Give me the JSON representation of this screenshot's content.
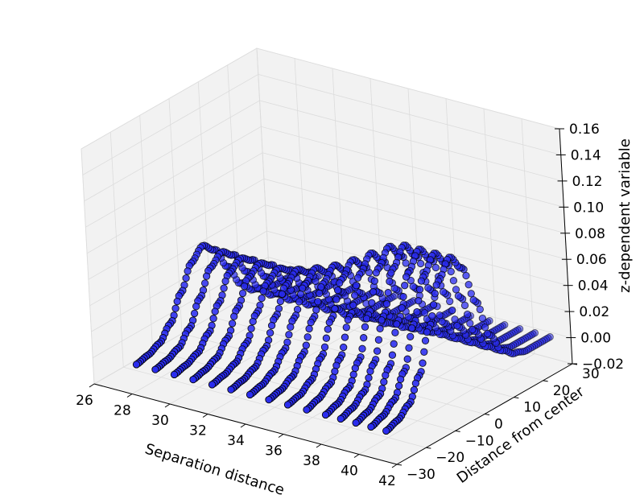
{
  "chart_data": {
    "type": "scatter",
    "projection": "3d",
    "title": "",
    "xlabel": "Separation distance",
    "ylabel": "Distance from center",
    "zlabel": "z-dependent variable",
    "xlim": [
      26,
      42
    ],
    "ylim": [
      -30,
      30
    ],
    "zlim": [
      -0.02,
      0.16
    ],
    "x_ticks": [
      "26",
      "28",
      "30",
      "32",
      "34",
      "36",
      "38",
      "40",
      "42"
    ],
    "y_ticks": [
      "−30",
      "−20",
      "−10",
      "0",
      "10",
      "20",
      "30"
    ],
    "z_ticks": [
      "−0.02",
      "0.00",
      "0.02",
      "0.04",
      "0.06",
      "0.08",
      "0.10",
      "0.12",
      "0.14",
      "0.16"
    ],
    "grid": true,
    "marker_color": "#2a2cf0",
    "marker_edge_color": "#000000",
    "pane_color": "#f2f2f2",
    "series": [
      {
        "separation": 28,
        "y": [
          -28,
          -24,
          -20,
          -16,
          -12,
          -8,
          -4,
          0,
          4,
          8,
          12,
          16,
          20,
          24,
          28
        ],
        "z": [
          0.0,
          0.002,
          0.006,
          0.016,
          0.034,
          0.052,
          0.06,
          0.052,
          0.034,
          0.016,
          0.006,
          0.002,
          0.0,
          0.0,
          0.0
        ]
      },
      {
        "separation": 29,
        "y": [
          -28,
          -24,
          -20,
          -16,
          -12,
          -8,
          -4,
          0,
          4,
          8,
          12,
          16,
          20,
          24,
          28
        ],
        "z": [
          0.0,
          0.002,
          0.006,
          0.016,
          0.034,
          0.052,
          0.059,
          0.052,
          0.034,
          0.016,
          0.006,
          0.002,
          0.0,
          0.0,
          0.0
        ]
      },
      {
        "separation": 30,
        "y": [
          -28,
          -24,
          -20,
          -16,
          -12,
          -8,
          -4,
          0,
          4,
          8,
          12,
          16,
          20,
          24,
          28
        ],
        "z": [
          0.0,
          0.002,
          0.006,
          0.016,
          0.034,
          0.052,
          0.058,
          0.052,
          0.034,
          0.016,
          0.006,
          0.002,
          0.0,
          0.0,
          0.0
        ]
      },
      {
        "separation": 31,
        "y": [
          -28,
          -24,
          -20,
          -16,
          -12,
          -8,
          -4,
          0,
          4,
          8,
          12,
          16,
          20,
          24,
          28
        ],
        "z": [
          0.0,
          0.002,
          0.006,
          0.016,
          0.034,
          0.052,
          0.058,
          0.052,
          0.034,
          0.016,
          0.006,
          0.002,
          0.0,
          0.0,
          0.0
        ]
      },
      {
        "separation": 32,
        "y": [
          -28,
          -24,
          -20,
          -16,
          -12,
          -8,
          -4,
          0,
          4,
          8,
          12,
          16,
          20,
          24,
          28
        ],
        "z": [
          0.0,
          0.002,
          0.006,
          0.016,
          0.034,
          0.052,
          0.058,
          0.052,
          0.034,
          0.016,
          0.006,
          0.002,
          0.0,
          0.0,
          0.0
        ]
      },
      {
        "separation": 33,
        "y": [
          -28,
          -24,
          -20,
          -16,
          -12,
          -8,
          -4,
          0,
          4,
          8,
          12,
          16,
          20,
          24,
          28
        ],
        "z": [
          0.0,
          0.002,
          0.006,
          0.016,
          0.035,
          0.054,
          0.061,
          0.054,
          0.035,
          0.016,
          0.006,
          0.002,
          0.0,
          0.0,
          0.0
        ]
      },
      {
        "separation": 34,
        "y": [
          -28,
          -24,
          -20,
          -16,
          -12,
          -8,
          -4,
          0,
          4,
          8,
          12,
          16,
          20,
          24,
          28
        ],
        "z": [
          0.0,
          0.002,
          0.007,
          0.018,
          0.038,
          0.058,
          0.066,
          0.058,
          0.038,
          0.018,
          0.007,
          0.002,
          0.0,
          0.0,
          0.0
        ]
      },
      {
        "separation": 35,
        "y": [
          -28,
          -24,
          -20,
          -16,
          -12,
          -8,
          -4,
          0,
          4,
          8,
          12,
          16,
          20,
          24,
          28
        ],
        "z": [
          0.0,
          0.002,
          0.007,
          0.019,
          0.041,
          0.063,
          0.072,
          0.063,
          0.041,
          0.019,
          0.007,
          0.002,
          0.0,
          0.0,
          0.0
        ]
      },
      {
        "separation": 36,
        "y": [
          -28,
          -24,
          -20,
          -16,
          -12,
          -8,
          -4,
          0,
          4,
          8,
          12,
          16,
          20,
          24,
          28
        ],
        "z": [
          0.0,
          0.002,
          0.008,
          0.021,
          0.045,
          0.07,
          0.08,
          0.07,
          0.045,
          0.021,
          0.008,
          0.002,
          0.0,
          0.0,
          0.0
        ]
      },
      {
        "separation": 37,
        "y": [
          -28,
          -24,
          -20,
          -16,
          -12,
          -8,
          -4,
          0,
          4,
          8,
          12,
          16,
          20,
          24,
          28
        ],
        "z": [
          0.0,
          0.003,
          0.009,
          0.024,
          0.051,
          0.078,
          0.089,
          0.078,
          0.051,
          0.024,
          0.009,
          0.003,
          0.0,
          0.0,
          0.0
        ]
      },
      {
        "separation": 38,
        "y": [
          -28,
          -24,
          -20,
          -16,
          -12,
          -8,
          -4,
          0,
          4,
          8,
          12,
          16,
          20,
          24,
          28
        ],
        "z": [
          0.0,
          0.003,
          0.01,
          0.026,
          0.056,
          0.086,
          0.098,
          0.086,
          0.056,
          0.026,
          0.01,
          0.003,
          0.0,
          0.0,
          0.0
        ]
      },
      {
        "separation": 38.8,
        "y": [
          -28,
          -24,
          -20,
          -16,
          -12,
          -8,
          -4,
          0,
          4,
          8,
          12,
          16,
          20,
          24,
          28
        ],
        "z": [
          0.0,
          0.003,
          0.01,
          0.027,
          0.058,
          0.089,
          0.102,
          0.089,
          0.058,
          0.027,
          0.01,
          0.003,
          0.0,
          0.0,
          0.0
        ]
      },
      {
        "separation": 39.6,
        "y": [
          -28,
          -24,
          -20,
          -16,
          -12,
          -8,
          -4,
          0,
          4,
          8,
          12,
          16,
          20,
          24,
          28
        ],
        "z": [
          0.0,
          0.003,
          0.01,
          0.027,
          0.058,
          0.089,
          0.102,
          0.089,
          0.058,
          0.027,
          0.01,
          0.003,
          0.0,
          0.0,
          0.0
        ]
      },
      {
        "separation": 40.4,
        "y": [
          -28,
          -24,
          -20,
          -16,
          -12,
          -8,
          -4,
          0,
          4,
          8,
          12,
          16,
          20,
          24,
          28
        ],
        "z": [
          0.0,
          0.003,
          0.01,
          0.027,
          0.058,
          0.089,
          0.102,
          0.089,
          0.058,
          0.027,
          0.01,
          0.003,
          0.0,
          0.0,
          0.0
        ]
      },
      {
        "separation": 41.2,
        "y": [
          -28,
          -24,
          -20,
          -16,
          -12,
          -8,
          -4,
          0,
          4,
          8,
          12,
          16,
          20,
          24,
          28
        ],
        "z": [
          0.0,
          0.003,
          0.01,
          0.027,
          0.058,
          0.089,
          0.102,
          0.089,
          0.058,
          0.027,
          0.01,
          0.003,
          0.0,
          0.0,
          0.0
        ]
      }
    ]
  }
}
